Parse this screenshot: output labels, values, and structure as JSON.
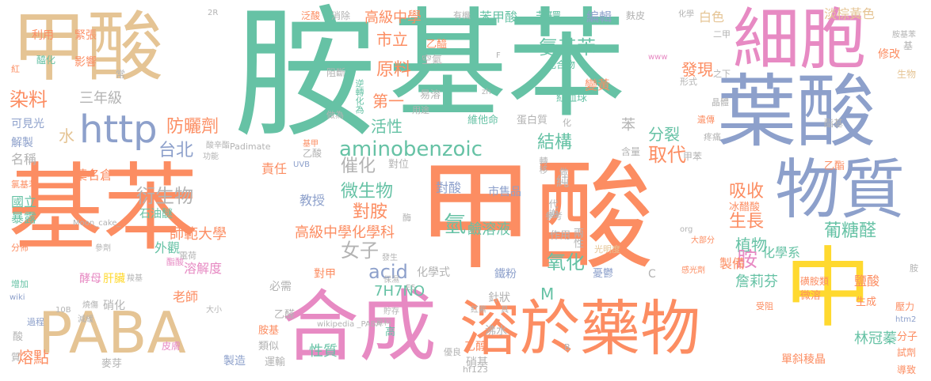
{
  "palette": {
    "orange": "#fc8d62",
    "green": "#66c2a5",
    "blue": "#8da0cb",
    "pink": "#e78ac3",
    "lime": "#a6d854",
    "yellow": "#ffd92f",
    "tan": "#e5c494",
    "gray": "#b3b3b3"
  },
  "words": [
    {
      "text": "基苯"
    },
    {
      "text": "甲酸"
    },
    {
      "text": "胺"
    },
    {
      "text": "基苯"
    },
    {
      "text": "甲酸"
    },
    {
      "text": "葉酸"
    },
    {
      "text": "細胞"
    },
    {
      "text": "物質"
    },
    {
      "text": "中"
    },
    {
      "text": "PABA"
    },
    {
      "text": "合成"
    },
    {
      "text": "溶於藥物"
    },
    {
      "text": "http"
    },
    {
      "text": "aminobenzoic"
    },
    {
      "text": "氨基苯"
    },
    {
      "text": "高級中學"
    },
    {
      "text": "原料"
    },
    {
      "text": "市立"
    },
    {
      "text": "染料"
    },
    {
      "text": "三年級"
    },
    {
      "text": "防曬劑"
    },
    {
      "text": "台北"
    },
    {
      "text": "水"
    },
    {
      "text": "衍生物"
    },
    {
      "text": "微生物"
    },
    {
      "text": "催化"
    },
    {
      "text": "對胺"
    },
    {
      "text": "結構"
    },
    {
      "text": "分裂"
    },
    {
      "text": "活性"
    },
    {
      "text": "發現"
    },
    {
      "text": "吸收"
    },
    {
      "text": "植物"
    },
    {
      "text": "胺"
    },
    {
      "text": "生長"
    },
    {
      "text": "取代"
    },
    {
      "text": "葡糖醛"
    },
    {
      "text": "女子"
    },
    {
      "text": "acid"
    },
    {
      "text": "氧化"
    },
    {
      "text": "氫"
    },
    {
      "text": "第一"
    },
    {
      "text": "M"
    },
    {
      "text": "7H7NO"
    },
    {
      "text": "林冠蓁"
    },
    {
      "text": "詹莉芬"
    },
    {
      "text": "化學系"
    },
    {
      "text": "鹼溶液"
    },
    {
      "text": "高級中學化學科"
    },
    {
      "text": "師範大學"
    },
    {
      "text": "外觀"
    },
    {
      "text": "老師"
    },
    {
      "text": "國立"
    },
    {
      "text": "暴露"
    },
    {
      "text": "熔點"
    },
    {
      "text": "性質"
    },
    {
      "text": "溶解度"
    },
    {
      "text": "苯"
    },
    {
      "text": "紅血球"
    },
    {
      "text": "維他命"
    },
    {
      "text": "蛋白質"
    },
    {
      "text": "變黃"
    },
    {
      "text": "化合物"
    },
    {
      "text": "空氣"
    },
    {
      "text": "乙醯"
    },
    {
      "text": "編輯"
    },
    {
      "text": "苯環"
    },
    {
      "text": "苯甲酸"
    },
    {
      "text": "淡棕黃色"
    },
    {
      "text": "白色"
    },
    {
      "text": "修改"
    },
    {
      "text": "對酸"
    },
    {
      "text": "市售品"
    },
    {
      "text": "教授"
    },
    {
      "text": "責任"
    },
    {
      "text": "葉名倉"
    },
    {
      "text": "名稱"
    },
    {
      "text": "解製"
    },
    {
      "text": "可見光"
    },
    {
      "text": "利用"
    },
    {
      "text": "緊張"
    },
    {
      "text": "影響"
    },
    {
      "text": "醯化"
    },
    {
      "text": "石油醚"
    },
    {
      "text": "酵母"
    },
    {
      "text": "肝臟"
    },
    {
      "text": "必需"
    },
    {
      "text": "對甲"
    },
    {
      "text": "化學式"
    },
    {
      "text": "鐵粉"
    },
    {
      "text": "針狀"
    },
    {
      "text": "沸水"
    },
    {
      "text": "乙醇"
    },
    {
      "text": "硝基"
    },
    {
      "text": "製造"
    },
    {
      "text": "運輸"
    },
    {
      "text": "hf123"
    },
    {
      "text": "優良"
    },
    {
      "text": "麥芽"
    },
    {
      "text": "類似"
    },
    {
      "text": "胺基"
    },
    {
      "text": "乙醛"
    },
    {
      "text": "硝化"
    },
    {
      "text": "皮膚"
    },
    {
      "text": "單斜稜晶"
    },
    {
      "text": "導致"
    },
    {
      "text": "試劑"
    },
    {
      "text": "分子"
    },
    {
      "text": "冰醋酸"
    },
    {
      "text": "製備"
    },
    {
      "text": "鹽酸"
    },
    {
      "text": "生成"
    },
    {
      "text": "微溶"
    },
    {
      "text": "磺胺類"
    },
    {
      "text": "憂鬱"
    },
    {
      "text": "作用"
    },
    {
      "text": "兩性"
    },
    {
      "text": "純"
    },
    {
      "text": "代謝"
    },
    {
      "text": "酶"
    },
    {
      "text": "對位"
    },
    {
      "text": "乙酸"
    },
    {
      "text": "酯基"
    },
    {
      "text": "光明度"
    },
    {
      "text": "易溶"
    },
    {
      "text": "阻斷"
    },
    {
      "text": "逆轉化為"
    },
    {
      "text": "消除"
    },
    {
      "text": "泛酸"
    },
    {
      "text": "常"
    },
    {
      "text": "紅"
    },
    {
      "text": "生物"
    },
    {
      "text": "之下"
    },
    {
      "text": "晶體"
    },
    {
      "text": "形式"
    },
    {
      "text": "二甲"
    },
    {
      "text": "化學"
    },
    {
      "text": "麩皮"
    },
    {
      "text": "有機"
    },
    {
      "text": "胺基苯"
    },
    {
      "text": "基"
    },
    {
      "text": "遺傳"
    },
    {
      "text": "疼痛"
    },
    {
      "text": "甲苯"
    },
    {
      "text": "乙酯"
    },
    {
      "text": "含量"
    },
    {
      "text": "轉移"
    },
    {
      "text": "參考"
    },
    {
      "text": "做"
    },
    {
      "text": "化"
    },
    {
      "text": "用途"
    },
    {
      "text": "做為"
    },
    {
      "text": "Padimate"
    },
    {
      "text": "UVB"
    },
    {
      "text": "酸辛酯"
    },
    {
      "text": "功能"
    },
    {
      "text": "基甲"
    },
    {
      "text": "氯基苯"
    },
    {
      "text": "Moon_cake_"
    },
    {
      "text": "參劑"
    },
    {
      "text": "分佈"
    },
    {
      "text": "電荷"
    },
    {
      "text": "酯酸"
    },
    {
      "text": "羧基"
    },
    {
      "text": "增加"
    },
    {
      "text": "燒傷"
    },
    {
      "text": "wiki"
    },
    {
      "text": "10B"
    },
    {
      "text": "過程"
    },
    {
      "text": "減緩"
    },
    {
      "text": "大小"
    },
    {
      "text": "酸"
    },
    {
      "text": "質"
    },
    {
      "text": "wikipedia _PABA"
    },
    {
      "text": "高"
    },
    {
      "text": "貯存"
    },
    {
      "text": "資料"
    },
    {
      "text": "E5"
    },
    {
      "text": "保濕"
    },
    {
      "text": "發生"
    },
    {
      "text": "紅紫"
    },
    {
      "text": "具"
    },
    {
      "text": "B"
    },
    {
      "text": "C"
    },
    {
      "text": "org"
    },
    {
      "text": "大部分"
    },
    {
      "text": "感光劑"
    },
    {
      "text": "受阻"
    },
    {
      "text": "壓力"
    },
    {
      "text": "htm2"
    },
    {
      "text": "胺"
    },
    {
      "text": "2R"
    },
    {
      "text": "F"
    },
    {
      "text": "www"
    },
    {
      "text": "zh"
    }
  ]
}
